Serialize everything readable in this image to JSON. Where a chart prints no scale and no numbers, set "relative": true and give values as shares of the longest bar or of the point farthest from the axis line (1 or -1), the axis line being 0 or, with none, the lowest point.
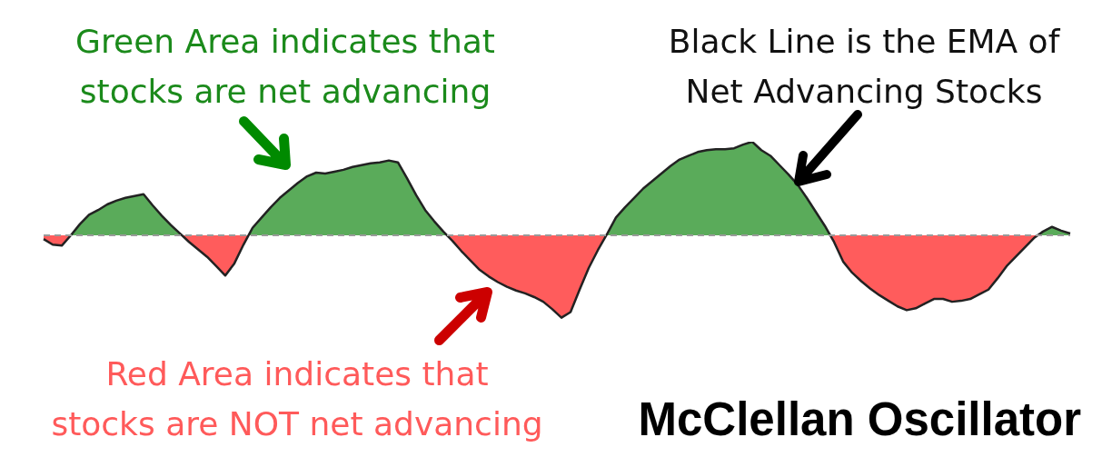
{
  "chart_data": {
    "type": "area",
    "title": "McClellan Oscillator",
    "relative": true,
    "annotations": [
      "Green Area indicates that\nstocks are net advancing",
      "Black Line is the EMA of\nNet Advancing Stocks",
      "Red Area indicates that\nstocks are NOT net advancing"
    ],
    "categories": [
      null,
      null,
      null,
      null,
      null,
      null,
      null,
      null,
      null,
      null,
      null,
      null,
      null,
      null,
      null,
      null,
      null,
      null,
      null,
      null,
      null,
      null,
      null,
      null,
      null,
      null,
      null,
      null,
      null,
      null,
      null,
      null,
      null,
      null,
      null,
      null,
      null,
      null,
      null,
      null,
      null,
      null,
      null,
      null,
      null,
      null,
      null,
      null,
      null,
      null,
      null,
      null,
      null,
      null,
      null,
      null,
      null,
      null,
      null,
      null,
      null,
      null,
      null,
      null,
      null,
      null,
      null,
      null,
      null,
      null,
      null,
      null,
      null,
      null,
      null,
      null,
      null,
      null,
      null,
      null,
      null,
      null,
      null,
      null,
      null,
      null,
      null,
      null,
      null,
      null,
      null,
      null,
      null,
      null,
      null,
      null,
      null,
      null,
      null,
      null,
      null,
      null,
      null,
      null,
      null,
      null,
      null,
      null,
      null,
      null,
      null,
      null,
      null,
      null
    ],
    "colors": [
      "#5aab5a",
      "#ff5c5c"
    ],
    "series": [
      {
        "color": "#222222",
        "values": [
          -0.04,
          -0.1,
          -0.11,
          0,
          0.12,
          0.22,
          0.27,
          0.33,
          0.37,
          0.4,
          0.42,
          0.44,
          0.32,
          0.21,
          0.11,
          0.02,
          -0.07,
          -0.15,
          -0.23,
          -0.33,
          -0.43,
          -0.3,
          -0.1,
          0.08,
          0.19,
          0.3,
          0.4,
          0.48,
          0.56,
          0.63,
          0.67,
          0.66,
          0.68,
          0.7,
          0.73,
          0.75,
          0.77,
          0.78,
          0.8,
          0.78,
          0.61,
          0.43,
          0.27,
          0.15,
          0.04,
          -0.06,
          -0.17,
          -0.27,
          -0.37,
          -0.44,
          -0.5,
          -0.55,
          -0.59,
          -0.62,
          -0.66,
          -0.71,
          -0.79,
          -0.88,
          -0.82,
          -0.58,
          -0.35,
          -0.16,
          0.01,
          0.19,
          0.3,
          0.4,
          0.5,
          0.58,
          0.66,
          0.74,
          0.81,
          0.85,
          0.89,
          0.91,
          0.92,
          0.92,
          0.93,
          0.97,
          1,
          0.91,
          0.85,
          0.75,
          0.65,
          0.54,
          0.4,
          0.25,
          0.1,
          -0.07,
          -0.28,
          -0.4,
          -0.49,
          -0.57,
          -0.64,
          -0.7,
          -0.76,
          -0.8,
          -0.78,
          -0.73,
          -0.68,
          -0.68,
          -0.71,
          -0.7,
          -0.68,
          -0.63,
          -0.58,
          -0.46,
          -0.33,
          -0.23,
          -0.13,
          -0.03,
          0.04,
          0.09,
          0.05,
          0.02
        ]
      }
    ]
  }
}
